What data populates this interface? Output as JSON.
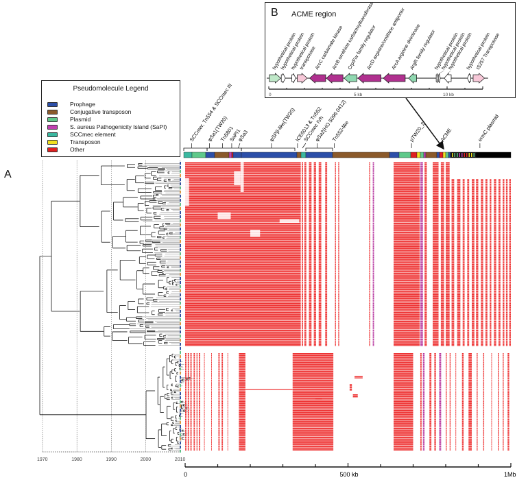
{
  "panel_a_label": "A",
  "legend": {
    "title": "Pseudomolecule Legend",
    "items": [
      {
        "label": "Prophage",
        "color": "#2c4fa8"
      },
      {
        "label": "Conjugative transposon",
        "color": "#8b5a2b"
      },
      {
        "label": "Plasmid",
        "color": "#5fc98a"
      },
      {
        "label": "S. aureus Pathogenicity Island (SaPI)",
        "color": "#c040b0"
      },
      {
        "label": "SCCmec element",
        "color": "#3ab8a0"
      },
      {
        "label": "Transposon",
        "color": "#f0e020"
      },
      {
        "label": "Other",
        "color": "#e02020"
      }
    ]
  },
  "inset": {
    "letter": "B",
    "title": "ACME region",
    "scale_ticks": [
      "0",
      "5 kb",
      "10 kb"
    ],
    "genes": [
      {
        "label": "hypothetical protein",
        "start": 0.03,
        "end": 0.67,
        "dir": "right",
        "color": "#bfe8c8"
      },
      {
        "label": "hypothetical protein",
        "start": 0.7,
        "end": 0.93,
        "dir": "right",
        "color": "#ffffff"
      },
      {
        "label": "hypothetical protein",
        "start": 1.29,
        "end": 1.51,
        "dir": "right",
        "color": "#ffffff"
      },
      {
        "label": "transposase",
        "start": 1.6,
        "end": 2.16,
        "dir": "right",
        "color": "#f7c8d8"
      },
      {
        "label": "ArcC carbamate kinase",
        "start": 2.29,
        "end": 3.19,
        "dir": "left",
        "color": "#b0308f"
      },
      {
        "label": "ArcB ornithine carbamoyltransferase",
        "start": 3.23,
        "end": 4.16,
        "dir": "left",
        "color": "#b0308f"
      },
      {
        "label": "Crp/Fnr family regulator",
        "start": 4.22,
        "end": 4.94,
        "dir": "left",
        "color": "#8fd8b0"
      },
      {
        "label": "ArcD arginine/ornithine antiporter",
        "start": 5.0,
        "end": 6.29,
        "dir": "left",
        "color": "#b0308f"
      },
      {
        "label": "ArcA arginine deiminase",
        "start": 6.42,
        "end": 7.65,
        "dir": "left",
        "color": "#b0308f"
      },
      {
        "label": "ArgR family regulator",
        "start": 7.84,
        "end": 8.29,
        "dir": "left",
        "color": "#8fd8b0"
      },
      {
        "label": "hypothetical protein",
        "start": 9.39,
        "end": 9.5,
        "dir": "right",
        "color": "#ffffff"
      },
      {
        "label": "hypothetical protein",
        "start": 9.51,
        "end": 9.62,
        "dir": "right",
        "color": "#ffffff"
      },
      {
        "label": "hypothetical protein",
        "start": 9.84,
        "end": 10.23,
        "dir": "left",
        "color": "#ffffff"
      },
      {
        "label": "hypothetical protein",
        "start": 11.14,
        "end": 11.33,
        "dir": "left",
        "color": "#ffffff"
      },
      {
        "label": "IS257 Transposase",
        "start": 11.46,
        "end": 12.1,
        "dir": "right",
        "color": "#f7c8d8"
      }
    ]
  },
  "elements": [
    {
      "label": "SCCmer, Tn554 & SCCmec III",
      "kb": 20
    },
    {
      "label": "φSa1(TW20)",
      "kb": 75
    },
    {
      "label": "Tn5801",
      "kb": 115
    },
    {
      "label": "SaPI1",
      "kb": 143
    },
    {
      "label": "φSa3",
      "kb": 163
    },
    {
      "label": "φSPβ-like(TW20)",
      "kb": 265
    },
    {
      "label": "ICE6013 & Tn552",
      "kb": 345
    },
    {
      "label": "SCCmec IVh",
      "kb": 360
    },
    {
      "label": "φSa2(HO 5096 0412)",
      "kb": 405
    },
    {
      "label": "Tn552-like",
      "kb": 458
    },
    {
      "label": "pTW20_2",
      "kb": 695
    },
    {
      "label": "ACME",
      "kb": 790
    },
    {
      "label": "ermC plasmid",
      "kb": 905
    }
  ],
  "time_axis": [
    "1970",
    "1980",
    "1990",
    "2000",
    "2010"
  ],
  "genome_axis": {
    "labels": [
      "0",
      "500 kb",
      "1Mb"
    ],
    "max_kb": 1000
  }
}
